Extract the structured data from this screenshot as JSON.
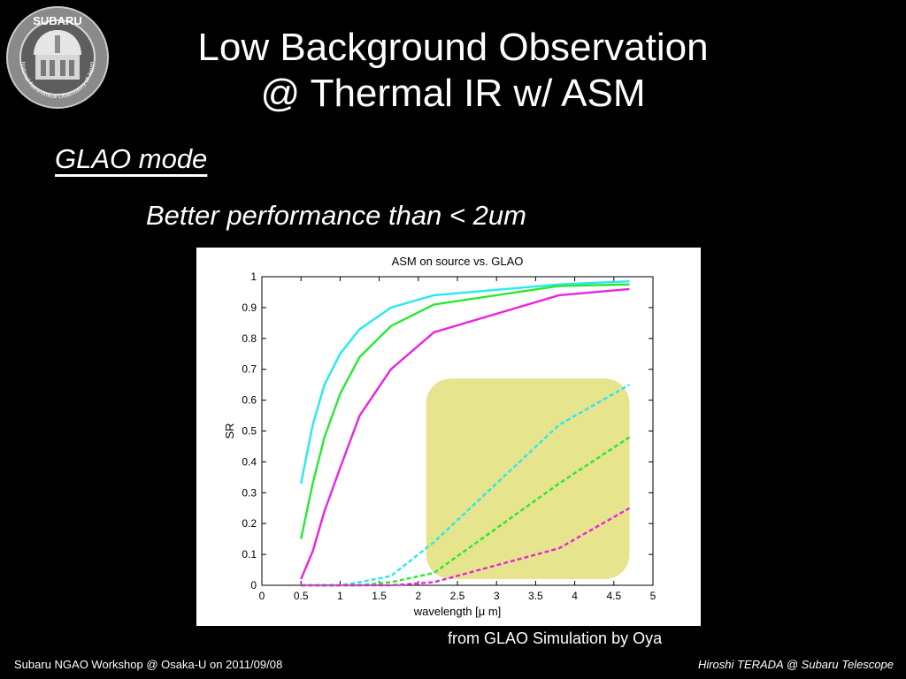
{
  "logo": {
    "name": "SUBARU",
    "ring_text": "National Astronomical Observatory of Japan"
  },
  "slide": {
    "title_line1": "Low Background Observation",
    "title_line2": "@ Thermal IR w/ ASM",
    "subtitle": "GLAO mode",
    "bullet": "Better performance than < 2um",
    "credit": "from GLAO Simulation by Oya"
  },
  "footer": {
    "left": "Subaru NGAO Workshop @ Osaka-U on 2011/09/08",
    "right": "Hiroshi TERADA @ Subaru Telescope"
  },
  "chart_data": {
    "type": "line",
    "title": "ASM on source vs. GLAO",
    "xlabel": "wavelength [μ m]",
    "ylabel": "SR",
    "xlim": [
      0,
      5
    ],
    "ylim": [
      0,
      1
    ],
    "xticks": [
      "0",
      "0.5",
      "1",
      "1.5",
      "2",
      "2.5",
      "3",
      "3.5",
      "4",
      "4.5",
      "5"
    ],
    "yticks": [
      "0",
      "0.1",
      "0.2",
      "0.3",
      "0.4",
      "0.5",
      "0.6",
      "0.7",
      "0.8",
      "0.9",
      "1"
    ],
    "grid": false,
    "highlight": {
      "x": [
        2.1,
        4.7
      ],
      "y": [
        0.02,
        0.67
      ],
      "color": "#e6e48c"
    },
    "series": [
      {
        "color": "#27e8f0",
        "dash": false,
        "x": [
          0.5,
          0.65,
          0.8,
          1.0,
          1.25,
          1.65,
          2.2,
          3.8,
          4.7
        ],
        "y": [
          0.33,
          0.52,
          0.65,
          0.75,
          0.83,
          0.9,
          0.94,
          0.975,
          0.985
        ]
      },
      {
        "color": "#2ae832",
        "dash": false,
        "x": [
          0.5,
          0.65,
          0.8,
          1.0,
          1.25,
          1.65,
          2.2,
          3.8,
          4.7
        ],
        "y": [
          0.15,
          0.33,
          0.48,
          0.62,
          0.74,
          0.84,
          0.91,
          0.97,
          0.975
        ]
      },
      {
        "color": "#e825e0",
        "dash": false,
        "x": [
          0.5,
          0.65,
          0.8,
          1.0,
          1.25,
          1.65,
          2.2,
          3.8,
          4.7
        ],
        "y": [
          0.02,
          0.11,
          0.24,
          0.38,
          0.55,
          0.7,
          0.82,
          0.94,
          0.96
        ]
      },
      {
        "color": "#27e8f0",
        "dash": true,
        "x": [
          0.5,
          1.0,
          1.25,
          1.65,
          2.2,
          3.8,
          4.7
        ],
        "y": [
          0.0,
          0.0,
          0.01,
          0.03,
          0.14,
          0.52,
          0.65
        ]
      },
      {
        "color": "#2ae832",
        "dash": true,
        "x": [
          0.5,
          1.25,
          1.65,
          2.2,
          3.8,
          4.7
        ],
        "y": [
          0.0,
          0.0,
          0.01,
          0.04,
          0.33,
          0.48
        ]
      },
      {
        "color": "#e825e0",
        "dash": true,
        "x": [
          0.5,
          1.65,
          2.2,
          3.8,
          4.7
        ],
        "y": [
          0.0,
          0.0,
          0.01,
          0.12,
          0.25
        ]
      }
    ]
  }
}
